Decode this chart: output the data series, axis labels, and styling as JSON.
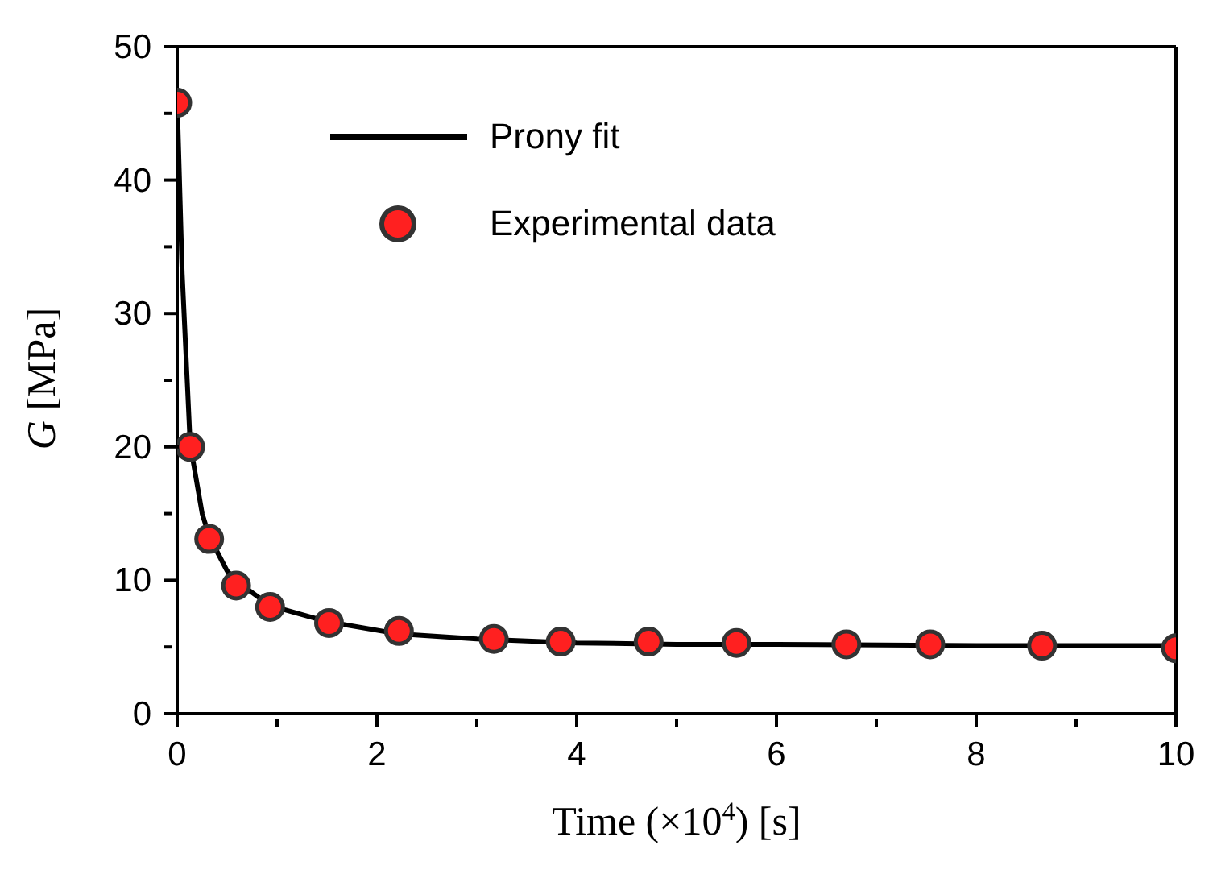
{
  "chart_data": {
    "type": "scatter",
    "xlabel": "Time (×10$^{4}$) [s]",
    "ylabel": "G [MPa]",
    "xlim": [
      0,
      10
    ],
    "xticks": [
      0,
      {
        "value": 1,
        "label": null
      },
      2,
      {
        "value": 3,
        "label": null
      },
      4,
      {
        "value": 5,
        "label": null
      },
      6,
      {
        "value": 7,
        "label": null
      },
      8,
      {
        "value": 9,
        "label": null
      },
      10
    ],
    "ylim": [
      0,
      50
    ],
    "yticks": [
      0,
      {
        "value": 5,
        "label": null
      },
      10,
      {
        "value": 15,
        "label": null
      },
      20,
      {
        "value": 25,
        "label": null
      },
      30,
      {
        "value": 35,
        "label": null
      },
      40,
      {
        "value": 45,
        "label": null
      },
      50
    ],
    "grid": false,
    "legend": "top",
    "series": [
      {
        "name": "Prony fit",
        "type": "line",
        "color": "#000000",
        "marker": "none",
        "line_style": "solid",
        "x": [
          0,
          0.05,
          0.13,
          0.25,
          0.32,
          0.5,
          0.6,
          0.93,
          1.5,
          2.2,
          3,
          4,
          5,
          6,
          8,
          10
        ],
        "values": [
          46,
          33,
          20.2,
          15,
          13.3,
          10.7,
          9.9,
          8.1,
          6.9,
          6.0,
          5.6,
          5.3,
          5.2,
          5.2,
          5.1,
          5.1
        ]
      },
      {
        "name": "Experimental data",
        "color": "#ff2020",
        "marker": "circle",
        "x": [
          0,
          0.13,
          0.32,
          0.59,
          0.93,
          1.52,
          2.22,
          3.17,
          3.84,
          4.72,
          5.6,
          6.7,
          7.54,
          8.66,
          10.0
        ],
        "values": [
          45.8,
          20.0,
          13.1,
          9.6,
          8.0,
          6.8,
          6.2,
          5.6,
          5.4,
          5.4,
          5.3,
          5.2,
          5.2,
          5.1,
          4.9
        ]
      }
    ]
  }
}
